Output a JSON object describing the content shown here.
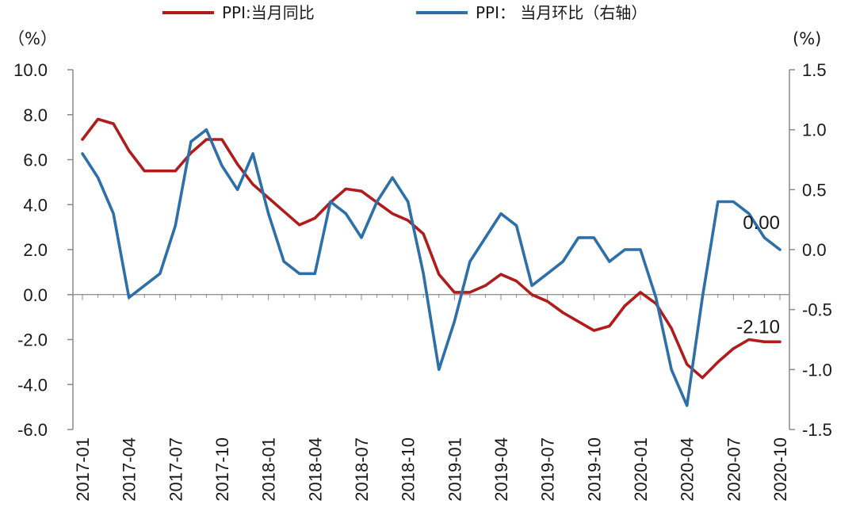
{
  "chart_data": {
    "type": "line",
    "x": [
      "2017-01",
      "2017-02",
      "2017-03",
      "2017-04",
      "2017-05",
      "2017-06",
      "2017-07",
      "2017-08",
      "2017-09",
      "2017-10",
      "2017-11",
      "2017-12",
      "2018-01",
      "2018-02",
      "2018-03",
      "2018-04",
      "2018-05",
      "2018-06",
      "2018-07",
      "2018-08",
      "2018-09",
      "2018-10",
      "2018-11",
      "2018-12",
      "2019-01",
      "2019-02",
      "2019-03",
      "2019-04",
      "2019-05",
      "2019-06",
      "2019-07",
      "2019-08",
      "2019-09",
      "2019-10",
      "2019-11",
      "2019-12",
      "2020-01",
      "2020-02",
      "2020-03",
      "2020-04",
      "2020-05",
      "2020-06",
      "2020-07",
      "2020-08",
      "2020-09",
      "2020-10"
    ],
    "x_tick_labels": [
      "2017-01",
      "2017-04",
      "2017-07",
      "2017-10",
      "2018-01",
      "2018-04",
      "2018-07",
      "2018-10",
      "2019-01",
      "2019-04",
      "2019-07",
      "2019-10",
      "2020-01",
      "2020-04",
      "2020-07",
      "2020-10"
    ],
    "series": [
      {
        "name": "PPI:当月同比",
        "axis": "left",
        "color": "#b01c1c",
        "values": [
          6.9,
          7.8,
          7.6,
          6.4,
          5.5,
          5.5,
          5.5,
          6.3,
          6.9,
          6.9,
          5.8,
          4.9,
          4.3,
          3.7,
          3.1,
          3.4,
          4.1,
          4.7,
          4.6,
          4.1,
          3.6,
          3.3,
          2.7,
          0.9,
          0.1,
          0.1,
          0.4,
          0.9,
          0.6,
          0.0,
          -0.3,
          -0.8,
          -1.2,
          -1.6,
          -1.4,
          -0.5,
          0.1,
          -0.4,
          -1.5,
          -3.1,
          -3.7,
          -3.0,
          -2.4,
          -2.0,
          -2.1,
          -2.1
        ]
      },
      {
        "name": "PPI： 当月环比（右轴）",
        "axis": "right",
        "color": "#2d6fa8",
        "values": [
          0.8,
          0.6,
          0.3,
          -0.4,
          -0.3,
          -0.2,
          0.2,
          0.9,
          1.0,
          0.7,
          0.5,
          0.8,
          0.3,
          -0.1,
          -0.2,
          -0.2,
          0.4,
          0.3,
          0.1,
          0.4,
          0.6,
          0.4,
          -0.2,
          -1.0,
          -0.6,
          -0.1,
          0.1,
          0.3,
          0.2,
          -0.3,
          -0.2,
          -0.1,
          0.1,
          0.1,
          -0.1,
          0.0,
          0.0,
          -0.4,
          -1.0,
          -1.3,
          -0.4,
          0.4,
          0.4,
          0.3,
          0.1,
          0.0
        ]
      }
    ],
    "left_axis": {
      "unit_label": "（%）",
      "ylim": [
        -6.0,
        10.0
      ],
      "tick_labels": [
        "10.0",
        "8.0",
        "6.0",
        "4.0",
        "2.0",
        "0.0",
        "-2.0",
        "-4.0",
        "-6.0"
      ]
    },
    "right_axis": {
      "unit_label": "(%)",
      "ylim": [
        -1.5,
        1.5
      ],
      "tick_labels": [
        "1.5",
        "1.0",
        "0.5",
        "0.0",
        "-0.5",
        "-1.0",
        "-1.5"
      ]
    },
    "annotations": [
      {
        "text": "0.00",
        "series": 1,
        "index": 45
      },
      {
        "text": "-2.10",
        "series": 0,
        "index": 45
      }
    ],
    "legend": {
      "placement": "top-center"
    },
    "grid": false
  }
}
